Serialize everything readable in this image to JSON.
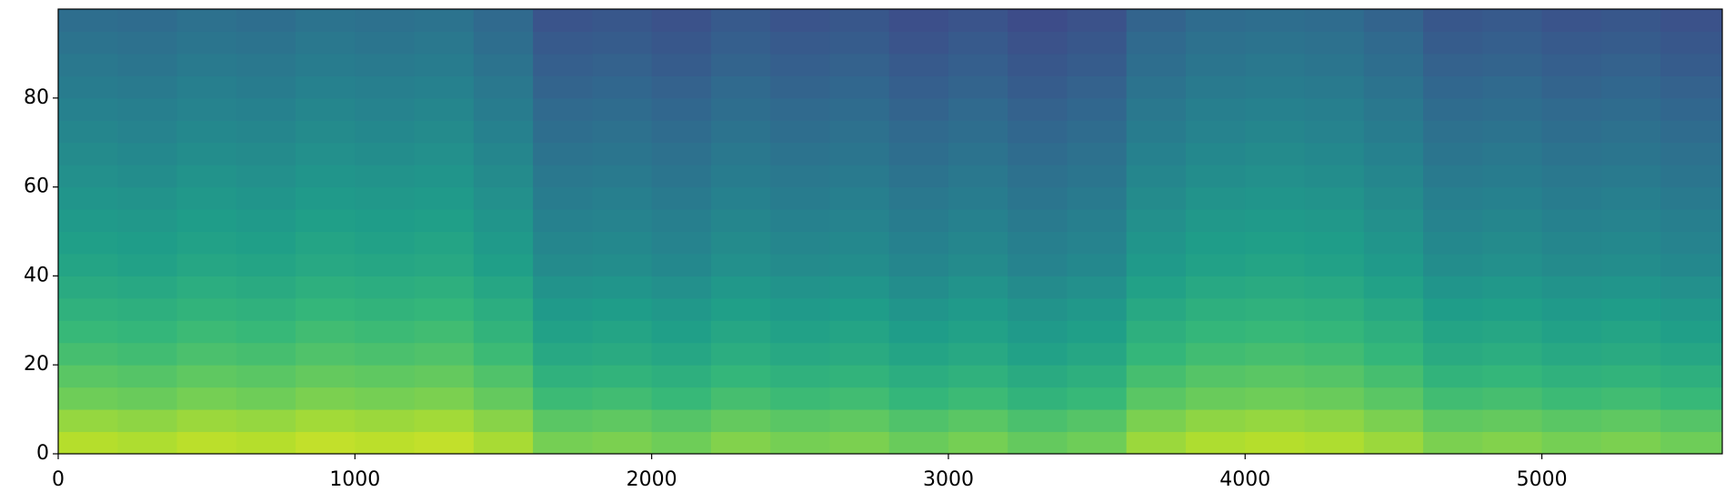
{
  "chart_data": {
    "type": "heatmap",
    "colormap": "viridis",
    "xlim": [
      0,
      5608
    ],
    "ylim": [
      0,
      100
    ],
    "xticks": [
      0,
      1000,
      2000,
      3000,
      4000,
      5000
    ],
    "yticks": [
      0,
      20,
      40,
      60,
      80
    ],
    "x_edges": [
      0,
      200,
      400,
      600,
      800,
      1000,
      1200,
      1400,
      1600,
      1800,
      2000,
      2200,
      2400,
      2600,
      2800,
      3000,
      3200,
      3400,
      3600,
      3800,
      4000,
      4200,
      4400,
      4600,
      4800,
      5000,
      5200,
      5400,
      5608
    ],
    "y_edges": [
      0,
      5,
      10,
      15,
      20,
      25,
      30,
      35,
      40,
      45,
      50,
      55,
      60,
      65,
      70,
      75,
      80,
      85,
      90,
      95,
      100
    ],
    "z": [
      [
        0.89,
        0.88,
        0.9,
        0.89,
        0.91,
        0.9,
        0.91,
        0.87,
        0.79,
        0.8,
        0.78,
        0.81,
        0.79,
        0.8,
        0.77,
        0.79,
        0.76,
        0.78,
        0.85,
        0.88,
        0.89,
        0.88,
        0.85,
        0.8,
        0.81,
        0.79,
        0.8,
        0.78
      ],
      [
        0.84,
        0.83,
        0.85,
        0.84,
        0.86,
        0.85,
        0.86,
        0.82,
        0.74,
        0.75,
        0.73,
        0.76,
        0.74,
        0.75,
        0.72,
        0.74,
        0.71,
        0.73,
        0.8,
        0.83,
        0.84,
        0.83,
        0.8,
        0.75,
        0.76,
        0.74,
        0.75,
        0.73
      ],
      [
        0.78,
        0.77,
        0.79,
        0.78,
        0.8,
        0.79,
        0.8,
        0.76,
        0.68,
        0.69,
        0.67,
        0.7,
        0.68,
        0.69,
        0.66,
        0.68,
        0.65,
        0.67,
        0.74,
        0.77,
        0.78,
        0.77,
        0.74,
        0.69,
        0.7,
        0.68,
        0.69,
        0.67
      ],
      [
        0.74,
        0.73,
        0.75,
        0.74,
        0.76,
        0.75,
        0.76,
        0.72,
        0.64,
        0.65,
        0.63,
        0.66,
        0.64,
        0.65,
        0.62,
        0.64,
        0.61,
        0.63,
        0.7,
        0.73,
        0.74,
        0.73,
        0.7,
        0.65,
        0.66,
        0.64,
        0.65,
        0.63
      ],
      [
        0.7,
        0.69,
        0.71,
        0.7,
        0.72,
        0.71,
        0.72,
        0.68,
        0.6,
        0.61,
        0.59,
        0.62,
        0.6,
        0.61,
        0.58,
        0.6,
        0.57,
        0.59,
        0.66,
        0.69,
        0.7,
        0.69,
        0.66,
        0.61,
        0.62,
        0.6,
        0.61,
        0.59
      ],
      [
        0.67,
        0.66,
        0.68,
        0.67,
        0.69,
        0.68,
        0.69,
        0.65,
        0.57,
        0.58,
        0.56,
        0.59,
        0.57,
        0.58,
        0.55,
        0.57,
        0.54,
        0.56,
        0.63,
        0.66,
        0.67,
        0.66,
        0.63,
        0.58,
        0.59,
        0.57,
        0.58,
        0.56
      ],
      [
        0.64,
        0.63,
        0.65,
        0.64,
        0.66,
        0.65,
        0.66,
        0.62,
        0.54,
        0.55,
        0.53,
        0.56,
        0.54,
        0.55,
        0.52,
        0.54,
        0.51,
        0.53,
        0.6,
        0.63,
        0.64,
        0.63,
        0.6,
        0.55,
        0.56,
        0.54,
        0.55,
        0.53
      ],
      [
        0.61,
        0.6,
        0.62,
        0.61,
        0.63,
        0.62,
        0.63,
        0.59,
        0.51,
        0.52,
        0.5,
        0.53,
        0.51,
        0.52,
        0.49,
        0.51,
        0.48,
        0.5,
        0.57,
        0.6,
        0.61,
        0.6,
        0.57,
        0.52,
        0.53,
        0.51,
        0.52,
        0.5
      ],
      [
        0.58,
        0.57,
        0.59,
        0.58,
        0.6,
        0.59,
        0.6,
        0.56,
        0.48,
        0.49,
        0.47,
        0.5,
        0.48,
        0.49,
        0.46,
        0.48,
        0.45,
        0.47,
        0.54,
        0.57,
        0.58,
        0.57,
        0.54,
        0.49,
        0.5,
        0.48,
        0.49,
        0.47
      ],
      [
        0.56,
        0.55,
        0.57,
        0.56,
        0.58,
        0.57,
        0.58,
        0.54,
        0.46,
        0.47,
        0.45,
        0.48,
        0.46,
        0.47,
        0.44,
        0.46,
        0.43,
        0.45,
        0.52,
        0.55,
        0.56,
        0.55,
        0.52,
        0.47,
        0.48,
        0.46,
        0.47,
        0.45
      ],
      [
        0.54,
        0.53,
        0.55,
        0.54,
        0.56,
        0.55,
        0.56,
        0.52,
        0.44,
        0.45,
        0.43,
        0.46,
        0.44,
        0.45,
        0.42,
        0.44,
        0.41,
        0.43,
        0.5,
        0.53,
        0.54,
        0.53,
        0.5,
        0.45,
        0.46,
        0.44,
        0.45,
        0.43
      ],
      [
        0.52,
        0.51,
        0.53,
        0.52,
        0.54,
        0.53,
        0.54,
        0.5,
        0.42,
        0.43,
        0.41,
        0.44,
        0.42,
        0.43,
        0.4,
        0.42,
        0.39,
        0.41,
        0.48,
        0.51,
        0.52,
        0.51,
        0.48,
        0.43,
        0.44,
        0.42,
        0.43,
        0.41
      ],
      [
        0.5,
        0.49,
        0.51,
        0.5,
        0.52,
        0.51,
        0.52,
        0.48,
        0.4,
        0.41,
        0.39,
        0.42,
        0.4,
        0.41,
        0.38,
        0.4,
        0.37,
        0.39,
        0.46,
        0.49,
        0.5,
        0.49,
        0.46,
        0.41,
        0.42,
        0.4,
        0.41,
        0.39
      ],
      [
        0.48,
        0.47,
        0.49,
        0.48,
        0.5,
        0.49,
        0.5,
        0.46,
        0.38,
        0.39,
        0.37,
        0.4,
        0.38,
        0.39,
        0.36,
        0.38,
        0.35,
        0.37,
        0.44,
        0.47,
        0.48,
        0.47,
        0.44,
        0.39,
        0.4,
        0.38,
        0.39,
        0.37
      ],
      [
        0.46,
        0.45,
        0.47,
        0.46,
        0.48,
        0.47,
        0.48,
        0.44,
        0.36,
        0.37,
        0.35,
        0.38,
        0.36,
        0.37,
        0.34,
        0.36,
        0.33,
        0.35,
        0.42,
        0.45,
        0.46,
        0.45,
        0.42,
        0.37,
        0.38,
        0.36,
        0.37,
        0.35
      ],
      [
        0.44,
        0.43,
        0.45,
        0.44,
        0.46,
        0.45,
        0.46,
        0.42,
        0.34,
        0.35,
        0.33,
        0.36,
        0.34,
        0.35,
        0.32,
        0.34,
        0.31,
        0.33,
        0.4,
        0.43,
        0.44,
        0.43,
        0.4,
        0.35,
        0.36,
        0.34,
        0.35,
        0.33
      ],
      [
        0.42,
        0.41,
        0.43,
        0.42,
        0.44,
        0.43,
        0.44,
        0.4,
        0.32,
        0.33,
        0.31,
        0.34,
        0.32,
        0.33,
        0.3,
        0.32,
        0.29,
        0.31,
        0.38,
        0.41,
        0.42,
        0.41,
        0.38,
        0.33,
        0.34,
        0.32,
        0.33,
        0.31
      ],
      [
        0.4,
        0.39,
        0.41,
        0.4,
        0.42,
        0.41,
        0.42,
        0.38,
        0.3,
        0.31,
        0.29,
        0.32,
        0.3,
        0.31,
        0.28,
        0.3,
        0.27,
        0.29,
        0.36,
        0.39,
        0.4,
        0.39,
        0.36,
        0.31,
        0.32,
        0.3,
        0.31,
        0.29
      ],
      [
        0.38,
        0.37,
        0.39,
        0.38,
        0.4,
        0.39,
        0.4,
        0.36,
        0.28,
        0.29,
        0.27,
        0.3,
        0.28,
        0.29,
        0.26,
        0.28,
        0.25,
        0.27,
        0.34,
        0.37,
        0.38,
        0.37,
        0.34,
        0.29,
        0.3,
        0.28,
        0.29,
        0.27
      ],
      [
        0.36,
        0.35,
        0.37,
        0.36,
        0.38,
        0.37,
        0.38,
        0.34,
        0.26,
        0.27,
        0.25,
        0.28,
        0.26,
        0.27,
        0.24,
        0.26,
        0.23,
        0.25,
        0.32,
        0.35,
        0.36,
        0.35,
        0.32,
        0.27,
        0.28,
        0.26,
        0.27,
        0.25
      ]
    ]
  }
}
